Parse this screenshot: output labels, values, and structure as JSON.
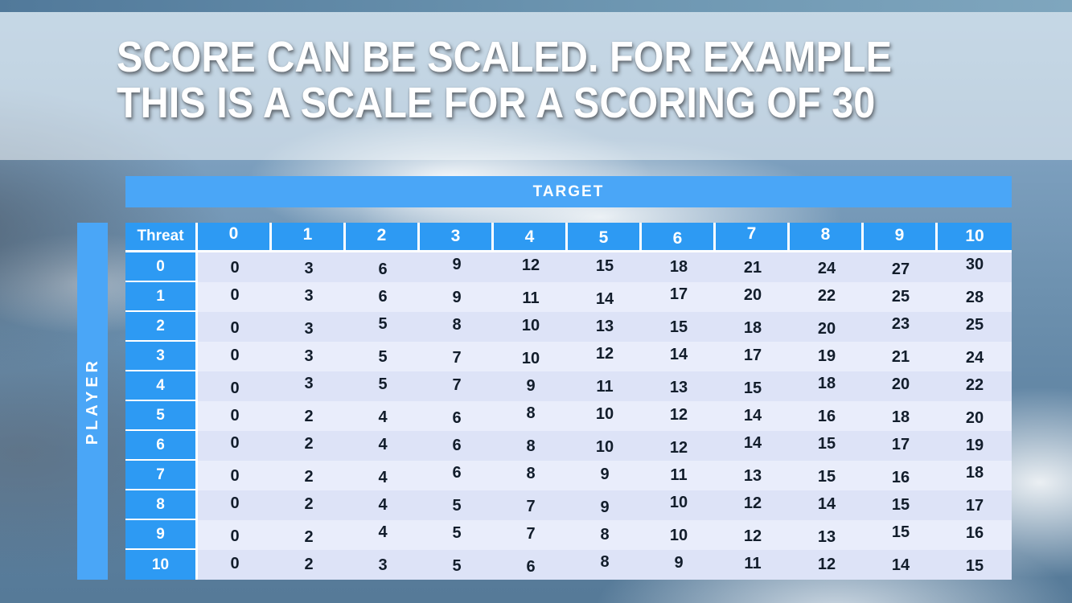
{
  "title": {
    "line1": "SCORE CAN BE SCALED. FOR EXAMPLE",
    "line2": "THIS IS A SCALE FOR A SCORING OF 30"
  },
  "table": {
    "target_label": "TARGET",
    "player_label": "PLAYER",
    "corner_label": "Threat",
    "column_headers": [
      "0",
      "1",
      "2",
      "3",
      "4",
      "5",
      "6",
      "7",
      "8",
      "9",
      "10"
    ],
    "row_headers": [
      "0",
      "1",
      "2",
      "3",
      "4",
      "5",
      "6",
      "7",
      "8",
      "9",
      "10"
    ],
    "rows": [
      [
        0,
        3,
        6,
        9,
        12,
        15,
        18,
        21,
        24,
        27,
        30
      ],
      [
        0,
        3,
        6,
        9,
        11,
        14,
        17,
        20,
        22,
        25,
        28
      ],
      [
        0,
        3,
        5,
        8,
        10,
        13,
        15,
        18,
        20,
        23,
        25
      ],
      [
        0,
        3,
        5,
        7,
        10,
        12,
        14,
        17,
        19,
        21,
        24
      ],
      [
        0,
        3,
        5,
        7,
        9,
        11,
        13,
        15,
        18,
        20,
        22
      ],
      [
        0,
        2,
        4,
        6,
        8,
        10,
        12,
        14,
        16,
        18,
        20
      ],
      [
        0,
        2,
        4,
        6,
        8,
        10,
        12,
        14,
        15,
        17,
        19
      ],
      [
        0,
        2,
        4,
        6,
        8,
        9,
        11,
        13,
        15,
        16,
        18
      ],
      [
        0,
        2,
        4,
        5,
        7,
        9,
        10,
        12,
        14,
        15,
        17
      ],
      [
        0,
        2,
        4,
        5,
        7,
        8,
        10,
        12,
        13,
        15,
        16
      ],
      [
        0,
        2,
        3,
        5,
        6,
        8,
        9,
        11,
        12,
        14,
        15
      ]
    ]
  },
  "chart_data": {
    "type": "table",
    "columns": [
      "Threat",
      "0",
      "1",
      "2",
      "3",
      "4",
      "5",
      "6",
      "7",
      "8",
      "9",
      "10"
    ],
    "rows": [
      [
        "0",
        0,
        3,
        6,
        9,
        12,
        15,
        18,
        21,
        24,
        27,
        30
      ],
      [
        "1",
        0,
        3,
        6,
        9,
        11,
        14,
        17,
        20,
        22,
        25,
        28
      ],
      [
        "2",
        0,
        3,
        5,
        8,
        10,
        13,
        15,
        18,
        20,
        23,
        25
      ],
      [
        "3",
        0,
        3,
        5,
        7,
        10,
        12,
        14,
        17,
        19,
        21,
        24
      ],
      [
        "4",
        0,
        3,
        5,
        7,
        9,
        11,
        13,
        15,
        18,
        20,
        22
      ],
      [
        "5",
        0,
        2,
        4,
        6,
        8,
        10,
        12,
        14,
        16,
        18,
        20
      ],
      [
        "6",
        0,
        2,
        4,
        6,
        8,
        10,
        12,
        14,
        15,
        17,
        19
      ],
      [
        "7",
        0,
        2,
        4,
        6,
        8,
        9,
        11,
        13,
        15,
        16,
        18
      ],
      [
        "8",
        0,
        2,
        4,
        5,
        7,
        9,
        10,
        12,
        14,
        15,
        17
      ],
      [
        "9",
        0,
        2,
        4,
        5,
        7,
        8,
        10,
        12,
        13,
        15,
        16
      ],
      [
        "10",
        0,
        2,
        3,
        5,
        6,
        8,
        9,
        11,
        12,
        14,
        15
      ]
    ],
    "title": "SCORE CAN BE SCALED. FOR EXAMPLE THIS IS A SCALE FOR A SCORING OF 30",
    "row_axis_label": "PLAYER",
    "col_axis_label": "TARGET"
  },
  "colors": {
    "header_cell_blue": "#2d9af3",
    "band_blue": "#4aa6f7",
    "band_a": "#dde3f7",
    "band_b": "#e9edfb",
    "cell_text": "#121d2b"
  }
}
